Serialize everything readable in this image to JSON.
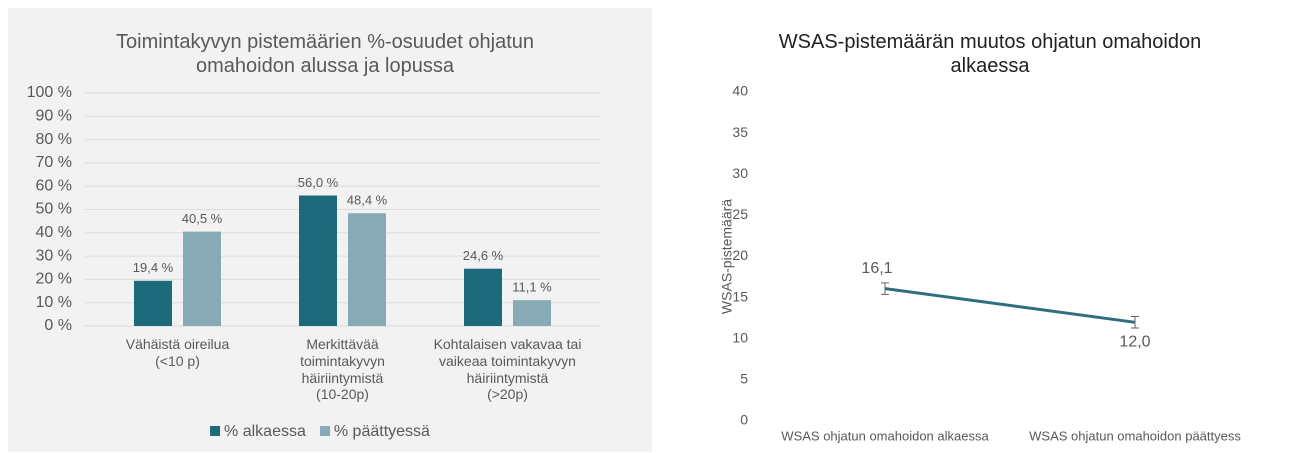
{
  "charts": [
    {
      "type": "bar",
      "title": "Toimintakyvyn pistemäärien %-osuudet ohjatun\nomahoidon alussa ja lopussa",
      "categories": [
        "Vähäistä oireilua\n(<10 p)",
        "Merkittävää\ntoimintakyvyn\nhäiriintymistä\n(10-20p)",
        "Kohtalaisen vakavaa tai\nvaikeaa toimintakyvyn\nhäiriintymistä\n(>20p)"
      ],
      "series": [
        {
          "name": "% alkaessa",
          "color": "#1d6a7c",
          "values": [
            19.4,
            56.0,
            24.6
          ],
          "value_labels": [
            "19,4 %",
            "56,0 %",
            "24,6 %"
          ]
        },
        {
          "name": "% päättyessä",
          "color": "#87aab5",
          "values": [
            40.5,
            48.4,
            11.1
          ],
          "value_labels": [
            "40,5 %",
            "48,4 %",
            "11,1 %"
          ]
        }
      ],
      "ylim": [
        0,
        100
      ],
      "yticks": [
        {
          "value": 0,
          "label": "0 %"
        },
        {
          "value": 10,
          "label": "10 %"
        },
        {
          "value": 20,
          "label": "20 %"
        },
        {
          "value": 30,
          "label": "30 %"
        },
        {
          "value": 40,
          "label": "40 %"
        },
        {
          "value": 50,
          "label": "50 %"
        },
        {
          "value": 60,
          "label": "60 %"
        },
        {
          "value": 70,
          "label": "70 %"
        },
        {
          "value": 80,
          "label": "80 %"
        },
        {
          "value": 90,
          "label": "90 %"
        },
        {
          "value": 100,
          "label": "100 %"
        }
      ],
      "grid": true,
      "legend": "bottom"
    },
    {
      "type": "line",
      "title": "WSAS-pistemäärän muutos ohjatun omahoidon\nalkaessa",
      "y_label": "WSAS-pistemäärä",
      "categories": [
        "WSAS ohjatun omahoidon alkaessa",
        "WSAS ohjatun omahoidon päättyess"
      ],
      "series": [
        {
          "color": "#2e6e80",
          "values": [
            16.1,
            12.0
          ],
          "value_labels": [
            "16,1",
            "12,0"
          ],
          "errors": [
            0.7,
            0.7
          ]
        }
      ],
      "ylim": [
        0,
        40
      ],
      "yticks": [
        0,
        5,
        10,
        15,
        20,
        25,
        30,
        35,
        40
      ],
      "grid": false
    }
  ]
}
